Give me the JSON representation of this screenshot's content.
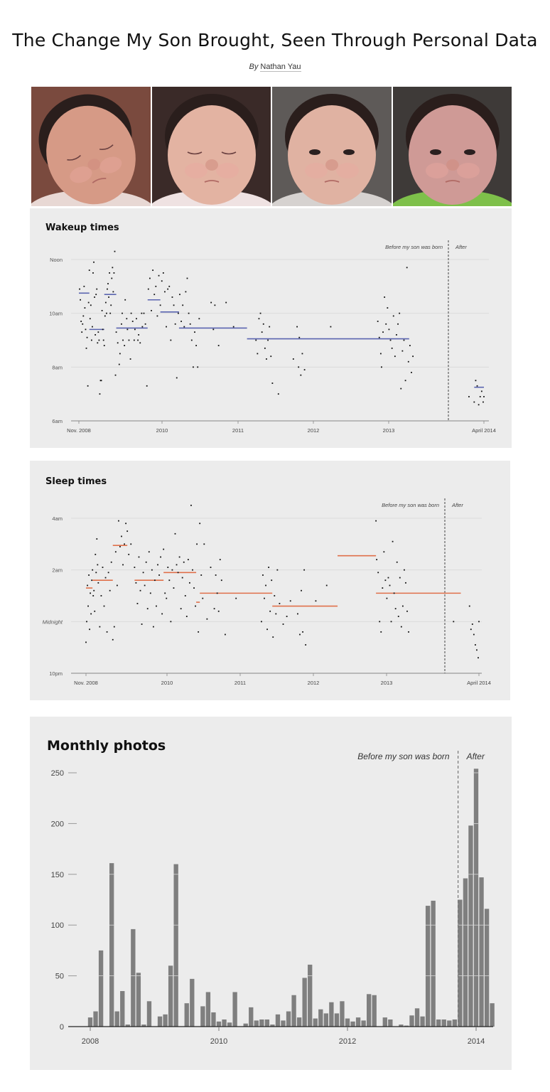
{
  "header": {
    "title": "The Change My Son Brought, Seen Through Personal Data",
    "by": "By",
    "author": "Nathan Yau"
  },
  "photos": [
    {
      "label": "baby-photo-1",
      "bg": "#7a4a3e",
      "skin": "#d69a86",
      "eyes": "closed",
      "clothes": "#e8d8d4"
    },
    {
      "label": "baby-photo-2",
      "bg": "#3a2a28",
      "skin": "#e3b3a2",
      "eyes": "closed",
      "clothes": "#efe2e2"
    },
    {
      "label": "baby-photo-3",
      "bg": "#5e5a58",
      "skin": "#e0b2a2",
      "eyes": "open",
      "clothes": "#d6d2d0"
    },
    {
      "label": "baby-photo-4",
      "bg": "#3e3a38",
      "skin": "#cf9a96",
      "eyes": "open",
      "clothes": "#7ec04a"
    }
  ],
  "annotations": {
    "before": "Before my son was born",
    "after": "After"
  },
  "colors": {
    "panel_bg": "#ececec",
    "wake_mean": "#5a64b0",
    "sleep_mean": "#e0704a",
    "bar": "#7f7f7f",
    "grid": "#d8d8d8",
    "dot": "#111111"
  },
  "chart_data": [
    {
      "type": "scatter",
      "title": "Wakeup times",
      "xlabel": "",
      "ylabel": "",
      "x_ticks": [
        "Nov. 2008",
        "2010",
        "2011",
        "2012",
        "2013",
        "April 2014"
      ],
      "y_ticks": [
        "6am",
        "8am",
        "10am",
        "Noon"
      ],
      "ylim_hours": [
        6,
        12.5
      ],
      "grid": true,
      "divider_label_left": "Before my son was born",
      "divider_label_right": "After",
      "divider_date": "2013.75",
      "mean_segments": [
        {
          "x0": 2008.83,
          "x1": 2008.97,
          "y": 10.75
        },
        {
          "x0": 2008.97,
          "x1": 2009.17,
          "y": 9.4
        },
        {
          "x0": 2009.17,
          "x1": 2009.33,
          "y": 10.7
        },
        {
          "x0": 2009.33,
          "x1": 2009.75,
          "y": 9.45
        },
        {
          "x0": 2009.75,
          "x1": 2009.92,
          "y": 10.5
        },
        {
          "x0": 2009.92,
          "x1": 2010.17,
          "y": 10.05
        },
        {
          "x0": 2010.17,
          "x1": 2011.08,
          "y": 9.45
        },
        {
          "x0": 2011.08,
          "x1": 2013.25,
          "y": 9.05
        },
        {
          "x0": 2014.12,
          "x1": 2014.25,
          "y": 7.25
        }
      ],
      "points_note": "scatter of daily wake times; dense clusters Nov 2008–mid 2010, spring 2011, late 2011, late 2012–spring 2013, sparse after April 2014 around 6:45–7:30am"
    },
    {
      "type": "scatter",
      "title": "Sleep times",
      "xlabel": "",
      "ylabel": "",
      "x_ticks": [
        "Nov. 2008",
        "2010",
        "2011",
        "2012",
        "2013",
        "April 2014"
      ],
      "y_ticks": [
        "10pm",
        "Midnight",
        "2am",
        "4am"
      ],
      "ylim_hours_after_10pm": [
        0,
        6.6
      ],
      "grid": true,
      "divider_label_left": "Before my son was born",
      "divider_label_right": "After",
      "divider_date": "2013.75",
      "mean_segments": [
        {
          "x0": 2008.83,
          "x1": 2008.92,
          "y": 3.3
        },
        {
          "x0": 2008.92,
          "x1": 2009.2,
          "y": 3.6
        },
        {
          "x0": 2009.2,
          "x1": 2009.4,
          "y": 4.95
        },
        {
          "x0": 2009.5,
          "x1": 2009.9,
          "y": 3.6
        },
        {
          "x0": 2009.9,
          "x1": 2010.35,
          "y": 3.9
        },
        {
          "x0": 2010.35,
          "x1": 2010.4,
          "y": 2.75
        },
        {
          "x0": 2010.4,
          "x1": 2011.4,
          "y": 3.1
        },
        {
          "x0": 2011.4,
          "x1": 2012.3,
          "y": 2.6
        },
        {
          "x0": 2012.3,
          "x1": 2012.83,
          "y": 4.55
        },
        {
          "x0": 2012.83,
          "x1": 2014.0,
          "y": 3.1
        }
      ],
      "points_note": "scatter of nightly bed times, mostly between 11pm and 4am before; after, points around 11pm–1am"
    },
    {
      "type": "bar",
      "title": "Monthly photos",
      "xlabel": "",
      "ylabel": "",
      "x_ticks": [
        "2008",
        "2010",
        "2012",
        "2014"
      ],
      "y_ticks": [
        0,
        50,
        100,
        150,
        200,
        250
      ],
      "ylim": [
        0,
        260
      ],
      "grid": false,
      "divider_label_left": "Before my son was born",
      "divider_label_right": "After",
      "divider_index": 69,
      "start": "2008-01",
      "categories": [
        "2008-01",
        "2008-02",
        "2008-03",
        "2008-04",
        "2008-05",
        "2008-06",
        "2008-07",
        "2008-08",
        "2008-09",
        "2008-10",
        "2008-11",
        "2008-12",
        "2009-01",
        "2009-02",
        "2009-03",
        "2009-04",
        "2009-05",
        "2009-06",
        "2009-07",
        "2009-08",
        "2009-09",
        "2009-10",
        "2009-11",
        "2009-12",
        "2010-01",
        "2010-02",
        "2010-03",
        "2010-04",
        "2010-05",
        "2010-06",
        "2010-07",
        "2010-08",
        "2010-09",
        "2010-10",
        "2010-11",
        "2010-12",
        "2011-01",
        "2011-02",
        "2011-03",
        "2011-04",
        "2011-05",
        "2011-06",
        "2011-07",
        "2011-08",
        "2011-09",
        "2011-10",
        "2011-11",
        "2011-12",
        "2012-01",
        "2012-02",
        "2012-03",
        "2012-04",
        "2012-05",
        "2012-06",
        "2012-07",
        "2012-08",
        "2012-09",
        "2012-10",
        "2012-11",
        "2012-12",
        "2013-01",
        "2013-02",
        "2013-03",
        "2013-04",
        "2013-05",
        "2013-06",
        "2013-07",
        "2013-08",
        "2013-09",
        "2013-10",
        "2013-11",
        "2013-12",
        "2014-01",
        "2014-02",
        "2014-03",
        "2014-04"
      ],
      "values": [
        9,
        15,
        75,
        0,
        161,
        15,
        35,
        2,
        96,
        53,
        2,
        25,
        0,
        10,
        12,
        60,
        160,
        0,
        23,
        47,
        0,
        20,
        34,
        14,
        5,
        7,
        4,
        34,
        0,
        3,
        19,
        6,
        7,
        7,
        2,
        12,
        6,
        15,
        31,
        9,
        48,
        61,
        8,
        17,
        13,
        24,
        13,
        25,
        8,
        5,
        9,
        6,
        32,
        31,
        0,
        9,
        7,
        0,
        2,
        1,
        11,
        18,
        10,
        119,
        124,
        7,
        7,
        6,
        7,
        125,
        146,
        198,
        254,
        147,
        116,
        23
      ]
    }
  ],
  "wake_points": [
    [
      2008.84,
      10.9
    ],
    [
      2008.85,
      10.5
    ],
    [
      2008.86,
      9.7
    ],
    [
      2008.87,
      9.3
    ],
    [
      2008.88,
      9.6
    ],
    [
      2008.89,
      9.9
    ],
    [
      2008.9,
      11.0
    ],
    [
      2008.91,
      10.2
    ],
    [
      2008.92,
      9.4
    ],
    [
      2008.93,
      8.7
    ],
    [
      2008.94,
      9.1
    ],
    [
      2008.95,
      7.3
    ],
    [
      2008.96,
      10.4
    ],
    [
      2008.97,
      11.6
    ],
    [
      2008.98,
      9.8
    ],
    [
      2008.99,
      10.3
    ],
    [
      2009.0,
      9.0
    ],
    [
      2009.01,
      9.5
    ],
    [
      2009.02,
      11.5
    ],
    [
      2009.03,
      11.9
    ],
    [
      2009.04,
      10.6
    ],
    [
      2009.05,
      9.2
    ],
    [
      2009.06,
      10.7
    ],
    [
      2009.07,
      10.9
    ],
    [
      2009.08,
      8.9
    ],
    [
      2009.09,
      9.3
    ],
    [
      2009.1,
      9.0
    ],
    [
      2009.11,
      7.0
    ],
    [
      2009.12,
      7.5
    ],
    [
      2009.13,
      7.5
    ],
    [
      2009.14,
      10.1
    ],
    [
      2009.15,
      9.4
    ],
    [
      2009.16,
      9.0
    ],
    [
      2009.17,
      8.8
    ],
    [
      2009.18,
      9.9
    ],
    [
      2009.19,
      10.4
    ],
    [
      2009.2,
      10.0
    ],
    [
      2009.21,
      10.9
    ],
    [
      2009.22,
      11.1
    ],
    [
      2009.23,
      10.6
    ],
    [
      2009.24,
      11.5
    ],
    [
      2009.25,
      10.0
    ],
    [
      2009.26,
      10.3
    ],
    [
      2009.27,
      11.3
    ],
    [
      2009.28,
      11.7
    ],
    [
      2009.29,
      10.8
    ],
    [
      2009.3,
      11.5
    ],
    [
      2009.31,
      12.3
    ],
    [
      2009.32,
      7.7
    ],
    [
      2009.33,
      9.3
    ],
    [
      2009.35,
      8.9
    ],
    [
      2009.37,
      8.1
    ],
    [
      2009.38,
      8.5
    ],
    [
      2009.4,
      9.6
    ],
    [
      2009.41,
      10.0
    ],
    [
      2009.42,
      9.0
    ],
    [
      2009.44,
      8.8
    ],
    [
      2009.45,
      10.5
    ],
    [
      2009.47,
      9.8
    ],
    [
      2009.48,
      9.4
    ],
    [
      2009.5,
      9.0
    ],
    [
      2009.52,
      8.3
    ],
    [
      2009.53,
      10.0
    ],
    [
      2009.55,
      9.7
    ],
    [
      2009.57,
      9.0
    ],
    [
      2009.58,
      9.4
    ],
    [
      2009.6,
      9.8
    ],
    [
      2009.62,
      9.0
    ],
    [
      2009.63,
      9.2
    ],
    [
      2009.65,
      8.9
    ],
    [
      2009.67,
      10.0
    ],
    [
      2009.68,
      9.5
    ],
    [
      2009.7,
      10.0
    ],
    [
      2009.72,
      9.6
    ],
    [
      2009.74,
      7.3
    ],
    [
      2009.76,
      10.9
    ],
    [
      2009.78,
      11.3
    ],
    [
      2009.8,
      10.1
    ],
    [
      2009.82,
      11.6
    ],
    [
      2009.84,
      10.7
    ],
    [
      2009.86,
      11.0
    ],
    [
      2009.88,
      9.9
    ],
    [
      2009.9,
      11.4
    ],
    [
      2009.92,
      10.3
    ],
    [
      2009.94,
      11.2
    ],
    [
      2009.96,
      11.5
    ],
    [
      2009.98,
      10.8
    ],
    [
      2010.0,
      9.5
    ],
    [
      2010.02,
      10.9
    ],
    [
      2010.04,
      11.0
    ],
    [
      2010.06,
      9.0
    ],
    [
      2010.08,
      10.6
    ],
    [
      2010.1,
      10.3
    ],
    [
      2010.12,
      9.6
    ],
    [
      2010.14,
      7.6
    ],
    [
      2010.16,
      10.0
    ],
    [
      2010.18,
      10.7
    ],
    [
      2010.2,
      9.7
    ],
    [
      2010.22,
      10.3
    ],
    [
      2010.24,
      9.5
    ],
    [
      2010.26,
      10.8
    ],
    [
      2010.28,
      11.3
    ],
    [
      2010.3,
      10.0
    ],
    [
      2010.32,
      9.6
    ],
    [
      2010.34,
      9.0
    ],
    [
      2010.36,
      8.0
    ],
    [
      2010.38,
      9.3
    ],
    [
      2010.4,
      8.8
    ],
    [
      2010.42,
      8.0
    ],
    [
      2010.44,
      9.8
    ],
    [
      2010.6,
      10.4
    ],
    [
      2010.63,
      9.4
    ],
    [
      2010.65,
      10.3
    ],
    [
      2010.7,
      8.8
    ],
    [
      2010.8,
      10.4
    ],
    [
      2010.9,
      9.5
    ],
    [
      2011.2,
      9.0
    ],
    [
      2011.22,
      8.5
    ],
    [
      2011.24,
      9.8
    ],
    [
      2011.26,
      10.0
    ],
    [
      2011.28,
      9.3
    ],
    [
      2011.3,
      9.6
    ],
    [
      2011.32,
      8.7
    ],
    [
      2011.34,
      8.3
    ],
    [
      2011.36,
      9.0
    ],
    [
      2011.38,
      9.5
    ],
    [
      2011.4,
      8.4
    ],
    [
      2011.42,
      7.4
    ],
    [
      2011.5,
      7.0
    ],
    [
      2011.7,
      8.3
    ],
    [
      2011.75,
      9.5
    ],
    [
      2011.77,
      8.0
    ],
    [
      2011.78,
      9.1
    ],
    [
      2011.8,
      7.7
    ],
    [
      2011.82,
      8.5
    ],
    [
      2011.85,
      7.9
    ],
    [
      2012.2,
      9.5
    ],
    [
      2012.83,
      9.7
    ],
    [
      2012.85,
      9.1
    ],
    [
      2012.87,
      8.5
    ],
    [
      2012.88,
      8.0
    ],
    [
      2012.9,
      9.3
    ],
    [
      2012.92,
      10.6
    ],
    [
      2012.94,
      9.6
    ],
    [
      2012.96,
      10.2
    ],
    [
      2012.98,
      9.4
    ],
    [
      2013.0,
      9.0
    ],
    [
      2013.02,
      8.7
    ],
    [
      2013.04,
      9.9
    ],
    [
      2013.06,
      8.4
    ],
    [
      2013.08,
      9.2
    ],
    [
      2013.1,
      9.6
    ],
    [
      2013.12,
      10.0
    ],
    [
      2013.14,
      7.2
    ],
    [
      2013.16,
      8.6
    ],
    [
      2013.18,
      9.0
    ],
    [
      2013.2,
      7.5
    ],
    [
      2013.22,
      11.7
    ],
    [
      2013.24,
      8.2
    ],
    [
      2013.26,
      8.8
    ],
    [
      2013.28,
      7.8
    ],
    [
      2013.3,
      8.4
    ],
    [
      2014.05,
      6.9
    ],
    [
      2014.12,
      6.7
    ],
    [
      2014.14,
      7.5
    ],
    [
      2014.16,
      7.3
    ],
    [
      2014.18,
      6.6
    ],
    [
      2014.2,
      6.9
    ],
    [
      2014.22,
      7.1
    ],
    [
      2014.24,
      6.7
    ],
    [
      2014.25,
      6.9
    ]
  ],
  "sleep_points": [
    [
      2008.83,
      1.2
    ],
    [
      2008.84,
      2.0
    ],
    [
      2008.85,
      3.4
    ],
    [
      2008.86,
      2.6
    ],
    [
      2008.87,
      3.8
    ],
    [
      2008.88,
      1.7
    ],
    [
      2008.89,
      3.1
    ],
    [
      2008.9,
      2.3
    ],
    [
      2008.91,
      3.6
    ],
    [
      2008.92,
      4.0
    ],
    [
      2008.93,
      3.0
    ],
    [
      2008.94,
      3.2
    ],
    [
      2008.95,
      2.4
    ],
    [
      2008.96,
      4.6
    ],
    [
      2008.97,
      3.9
    ],
    [
      2008.98,
      5.2
    ],
    [
      2008.99,
      4.2
    ],
    [
      2009.0,
      3.5
    ],
    [
      2009.02,
      1.8
    ],
    [
      2009.04,
      3.0
    ],
    [
      2009.06,
      4.1
    ],
    [
      2009.08,
      2.6
    ],
    [
      2009.1,
      3.7
    ],
    [
      2009.12,
      1.6
    ],
    [
      2009.14,
      3.9
    ],
    [
      2009.16,
      3.2
    ],
    [
      2009.18,
      4.3
    ],
    [
      2009.2,
      1.3
    ],
    [
      2009.22,
      1.8
    ],
    [
      2009.24,
      4.7
    ],
    [
      2009.26,
      3.4
    ],
    [
      2009.28,
      5.9
    ],
    [
      2009.3,
      4.9
    ],
    [
      2009.32,
      5.3
    ],
    [
      2009.34,
      4.2
    ],
    [
      2009.36,
      5.0
    ],
    [
      2009.38,
      5.8
    ],
    [
      2009.4,
      5.5
    ],
    [
      2009.42,
      4.6
    ],
    [
      2009.45,
      5.0
    ],
    [
      2009.5,
      4.1
    ],
    [
      2009.52,
      3.5
    ],
    [
      2009.54,
      2.7
    ],
    [
      2009.56,
      4.5
    ],
    [
      2009.58,
      3.2
    ],
    [
      2009.6,
      1.9
    ],
    [
      2009.62,
      3.9
    ],
    [
      2009.64,
      3.4
    ],
    [
      2009.66,
      4.3
    ],
    [
      2009.68,
      2.5
    ],
    [
      2009.7,
      4.7
    ],
    [
      2009.72,
      3.1
    ],
    [
      2009.74,
      4.0
    ],
    [
      2009.76,
      1.8
    ],
    [
      2009.78,
      3.6
    ],
    [
      2009.8,
      2.6
    ],
    [
      2009.82,
      4.2
    ],
    [
      2009.84,
      3.8
    ],
    [
      2009.86,
      4.5
    ],
    [
      2009.88,
      2.3
    ],
    [
      2009.9,
      4.8
    ],
    [
      2009.92,
      3.1
    ],
    [
      2009.94,
      2.9
    ],
    [
      2009.96,
      4.1
    ],
    [
      2009.98,
      3.6
    ],
    [
      2010.0,
      2.0
    ],
    [
      2010.02,
      4.0
    ],
    [
      2010.04,
      3.3
    ],
    [
      2010.06,
      5.4
    ],
    [
      2010.08,
      4.2
    ],
    [
      2010.1,
      3.9
    ],
    [
      2010.12,
      4.5
    ],
    [
      2010.14,
      2.5
    ],
    [
      2010.16,
      3.7
    ],
    [
      2010.18,
      4.3
    ],
    [
      2010.2,
      3.0
    ],
    [
      2010.22,
      2.2
    ],
    [
      2010.24,
      4.4
    ],
    [
      2010.26,
      3.5
    ],
    [
      2010.28,
      6.5
    ],
    [
      2010.3,
      4.0
    ],
    [
      2010.32,
      3.3
    ],
    [
      2010.34,
      2.6
    ],
    [
      2010.36,
      5.0
    ],
    [
      2010.38,
      1.6
    ],
    [
      2010.4,
      5.8
    ],
    [
      2010.42,
      3.8
    ],
    [
      2010.44,
      2.9
    ],
    [
      2010.46,
      5.0
    ],
    [
      2010.5,
      2.1
    ],
    [
      2010.55,
      4.1
    ],
    [
      2010.6,
      2.5
    ],
    [
      2010.62,
      3.8
    ],
    [
      2010.64,
      3.1
    ],
    [
      2010.66,
      2.4
    ],
    [
      2010.68,
      4.4
    ],
    [
      2010.7,
      3.6
    ],
    [
      2010.75,
      1.5
    ],
    [
      2010.9,
      2.9
    ],
    [
      2011.25,
      2.0
    ],
    [
      2011.27,
      3.8
    ],
    [
      2011.29,
      2.9
    ],
    [
      2011.31,
      3.4
    ],
    [
      2011.33,
      1.7
    ],
    [
      2011.35,
      4.1
    ],
    [
      2011.37,
      2.4
    ],
    [
      2011.39,
      3.6
    ],
    [
      2011.41,
      1.4
    ],
    [
      2011.43,
      3.0
    ],
    [
      2011.45,
      2.3
    ],
    [
      2011.47,
      4.0
    ],
    [
      2011.5,
      2.7
    ],
    [
      2011.55,
      1.9
    ],
    [
      2011.6,
      2.2
    ],
    [
      2011.65,
      2.8
    ],
    [
      2011.75,
      2.3
    ],
    [
      2011.78,
      1.5
    ],
    [
      2011.8,
      3.2
    ],
    [
      2011.82,
      1.6
    ],
    [
      2011.84,
      4.0
    ],
    [
      2011.86,
      1.1
    ],
    [
      2012.0,
      2.8
    ],
    [
      2012.15,
      3.4
    ],
    [
      2012.83,
      5.9
    ],
    [
      2012.84,
      4.4
    ],
    [
      2012.86,
      3.9
    ],
    [
      2012.88,
      2.0
    ],
    [
      2012.9,
      1.6
    ],
    [
      2012.92,
      3.3
    ],
    [
      2012.94,
      4.7
    ],
    [
      2012.96,
      3.6
    ],
    [
      2012.98,
      2.9
    ],
    [
      2013.0,
      3.7
    ],
    [
      2013.02,
      3.4
    ],
    [
      2013.04,
      2.0
    ],
    [
      2013.06,
      5.1
    ],
    [
      2013.08,
      3.1
    ],
    [
      2013.1,
      2.5
    ],
    [
      2013.12,
      4.3
    ],
    [
      2013.14,
      2.2
    ],
    [
      2013.16,
      3.7
    ],
    [
      2013.18,
      1.8
    ],
    [
      2013.2,
      2.6
    ],
    [
      2013.22,
      4.0
    ],
    [
      2013.24,
      3.5
    ],
    [
      2013.26,
      2.4
    ],
    [
      2013.28,
      1.6
    ],
    [
      2013.9,
      2.0
    ],
    [
      2014.12,
      2.6
    ],
    [
      2014.14,
      1.7
    ],
    [
      2014.16,
      1.9
    ],
    [
      2014.18,
      1.5
    ],
    [
      2014.2,
      1.1
    ],
    [
      2014.22,
      0.9
    ],
    [
      2014.24,
      0.6
    ],
    [
      2014.25,
      2.0
    ]
  ]
}
